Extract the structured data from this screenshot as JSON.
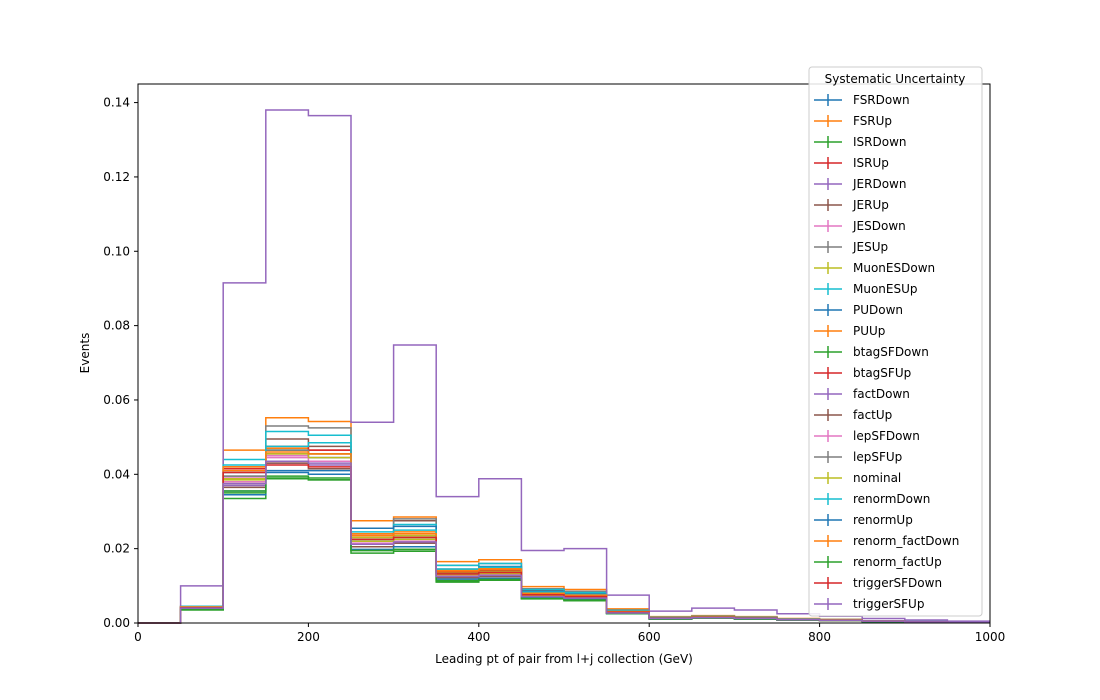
{
  "chart_data": {
    "type": "line",
    "step": true,
    "title": "",
    "xlabel": "Leading pt of pair from l+j collection (GeV)",
    "ylabel": "Events",
    "xlim": [
      0,
      1000
    ],
    "ylim": [
      0,
      0.145
    ],
    "grid": false,
    "x_ticks": [
      "0",
      "200",
      "400",
      "600",
      "800",
      "1000"
    ],
    "y_ticks": [
      "0.00",
      "0.02",
      "0.04",
      "0.06",
      "0.08",
      "0.10",
      "0.12",
      "0.14"
    ],
    "bin_edges": [
      0,
      50,
      100,
      150,
      200,
      250,
      300,
      350,
      400,
      450,
      500,
      550,
      600,
      650,
      700,
      750,
      800,
      850,
      900,
      950,
      1000
    ],
    "legend": {
      "title": "Systematic Uncertainty",
      "placement": "upper-right"
    },
    "series": [
      {
        "name": "FSRDown",
        "color": "#1f77b4",
        "values": [
          0,
          0.004,
          0.0355,
          0.041,
          0.041,
          0.0225,
          0.022,
          0.0125,
          0.013,
          0.007,
          0.0065,
          0.003,
          0.0012,
          0.0015,
          0.0012,
          0.0009,
          0.0007,
          0.0005,
          0.0003,
          0.0002
        ]
      },
      {
        "name": "FSRUp",
        "color": "#ff7f0e",
        "values": [
          0,
          0.0045,
          0.0465,
          0.0552,
          0.0542,
          0.0275,
          0.0285,
          0.0165,
          0.017,
          0.0098,
          0.009,
          0.0038,
          0.0017,
          0.002,
          0.0017,
          0.0012,
          0.001,
          0.0006,
          0.0004,
          0.0002
        ]
      },
      {
        "name": "ISRDown",
        "color": "#2ca02c",
        "values": [
          0,
          0.0035,
          0.0335,
          0.0388,
          0.0385,
          0.0188,
          0.0193,
          0.011,
          0.0115,
          0.0065,
          0.006,
          0.0025,
          0.001,
          0.0013,
          0.001,
          0.0008,
          0.0006,
          0.0004,
          0.0003,
          0.0002
        ]
      },
      {
        "name": "ISRUp",
        "color": "#d62728",
        "values": [
          0,
          0.0042,
          0.042,
          0.0455,
          0.0465,
          0.024,
          0.0235,
          0.0135,
          0.0138,
          0.0075,
          0.007,
          0.003,
          0.0013,
          0.0016,
          0.0013,
          0.001,
          0.0008,
          0.0005,
          0.0003,
          0.0002
        ]
      },
      {
        "name": "JERDown",
        "color": "#9467bd",
        "values": [
          0,
          0.0038,
          0.037,
          0.043,
          0.0425,
          0.0205,
          0.0215,
          0.0125,
          0.0125,
          0.007,
          0.0068,
          0.0028,
          0.0012,
          0.0015,
          0.0012,
          0.0009,
          0.0007,
          0.0005,
          0.0003,
          0.0002
        ]
      },
      {
        "name": "JERUp",
        "color": "#8c564b",
        "values": [
          0,
          0.004,
          0.0375,
          0.0495,
          0.0475,
          0.0235,
          0.0275,
          0.0145,
          0.015,
          0.0088,
          0.008,
          0.0032,
          0.0014,
          0.0017,
          0.0014,
          0.001,
          0.0008,
          0.0005,
          0.0003,
          0.0002
        ]
      },
      {
        "name": "JESDown",
        "color": "#e377c2",
        "values": [
          0,
          0.004,
          0.039,
          0.045,
          0.0445,
          0.022,
          0.022,
          0.0128,
          0.013,
          0.0072,
          0.0068,
          0.0028,
          0.0012,
          0.0015,
          0.0012,
          0.0009,
          0.0007,
          0.0005,
          0.0003,
          0.0002
        ]
      },
      {
        "name": "JESUp",
        "color": "#7f7f7f",
        "values": [
          0,
          0.0042,
          0.0395,
          0.053,
          0.0525,
          0.0255,
          0.028,
          0.0155,
          0.016,
          0.0092,
          0.0085,
          0.0035,
          0.0015,
          0.0018,
          0.0015,
          0.0011,
          0.0009,
          0.0006,
          0.0004,
          0.0002
        ]
      },
      {
        "name": "MuonESDown",
        "color": "#bcbd22",
        "values": [
          0,
          0.004,
          0.0385,
          0.0465,
          0.0455,
          0.023,
          0.0235,
          0.0135,
          0.014,
          0.0078,
          0.0072,
          0.003,
          0.0013,
          0.0016,
          0.0013,
          0.001,
          0.0008,
          0.0005,
          0.0003,
          0.0002
        ]
      },
      {
        "name": "MuonESUp",
        "color": "#17becf",
        "values": [
          0,
          0.0045,
          0.044,
          0.0515,
          0.0505,
          0.0255,
          0.0265,
          0.0155,
          0.016,
          0.009,
          0.0082,
          0.0034,
          0.0015,
          0.0018,
          0.0015,
          0.0011,
          0.0009,
          0.0006,
          0.0004,
          0.0002
        ]
      },
      {
        "name": "PUDown",
        "color": "#1f77b4",
        "values": [
          0,
          0.004,
          0.0405,
          0.0465,
          0.0445,
          0.0255,
          0.026,
          0.0145,
          0.0152,
          0.0085,
          0.0078,
          0.0032,
          0.0014,
          0.0017,
          0.0014,
          0.001,
          0.0008,
          0.0005,
          0.0003,
          0.0002
        ]
      },
      {
        "name": "PUUp",
        "color": "#ff7f0e",
        "values": [
          0,
          0.0043,
          0.041,
          0.047,
          0.0455,
          0.024,
          0.0245,
          0.0142,
          0.0148,
          0.0082,
          0.0076,
          0.0031,
          0.0014,
          0.0017,
          0.0014,
          0.001,
          0.0008,
          0.0005,
          0.0003,
          0.0002
        ]
      },
      {
        "name": "btagSFDown",
        "color": "#2ca02c",
        "values": [
          0,
          0.0037,
          0.0355,
          0.0395,
          0.039,
          0.0195,
          0.0198,
          0.0112,
          0.0118,
          0.0066,
          0.0062,
          0.0026,
          0.0011,
          0.0013,
          0.0011,
          0.0008,
          0.0006,
          0.0004,
          0.0003,
          0.0002
        ]
      },
      {
        "name": "btagSFUp",
        "color": "#d62728",
        "values": [
          0,
          0.0042,
          0.0415,
          0.0475,
          0.0465,
          0.0235,
          0.024,
          0.0138,
          0.0143,
          0.008,
          0.0074,
          0.003,
          0.0013,
          0.0016,
          0.0013,
          0.001,
          0.0008,
          0.0005,
          0.0003,
          0.0002
        ]
      },
      {
        "name": "factDown",
        "color": "#9467bd",
        "values": [
          0,
          0.01,
          0.0915,
          0.138,
          0.1365,
          0.054,
          0.0748,
          0.034,
          0.0388,
          0.0195,
          0.02,
          0.0075,
          0.0032,
          0.004,
          0.0035,
          0.0025,
          0.0018,
          0.0012,
          0.0008,
          0.0005
        ]
      },
      {
        "name": "factUp",
        "color": "#8c564b",
        "values": [
          0,
          0.004,
          0.0365,
          0.043,
          0.0415,
          0.0205,
          0.0215,
          0.0122,
          0.0125,
          0.007,
          0.0066,
          0.0027,
          0.0012,
          0.0014,
          0.0012,
          0.0009,
          0.0007,
          0.0005,
          0.0003,
          0.0002
        ]
      },
      {
        "name": "lepSFDown",
        "color": "#e377c2",
        "values": [
          0,
          0.004,
          0.038,
          0.0445,
          0.0435,
          0.0215,
          0.022,
          0.0127,
          0.013,
          0.0072,
          0.0068,
          0.0028,
          0.0012,
          0.0015,
          0.0012,
          0.0009,
          0.0007,
          0.0005,
          0.0003,
          0.0002
        ]
      },
      {
        "name": "lepSFUp",
        "color": "#7f7f7f",
        "values": [
          0,
          0.0041,
          0.0395,
          0.0465,
          0.0455,
          0.0225,
          0.023,
          0.0132,
          0.0136,
          0.0076,
          0.0071,
          0.0029,
          0.0013,
          0.0015,
          0.0013,
          0.0009,
          0.0007,
          0.0005,
          0.0003,
          0.0002
        ]
      },
      {
        "name": "nominal",
        "color": "#bcbd22",
        "values": [
          0,
          0.004,
          0.0388,
          0.0455,
          0.0445,
          0.022,
          0.0225,
          0.013,
          0.0133,
          0.0074,
          0.007,
          0.0028,
          0.0012,
          0.0015,
          0.0012,
          0.0009,
          0.0007,
          0.0005,
          0.0003,
          0.0002
        ]
      },
      {
        "name": "renormDown",
        "color": "#17becf",
        "values": [
          0,
          0.0043,
          0.0425,
          0.0475,
          0.0485,
          0.0245,
          0.025,
          0.0145,
          0.015,
          0.0083,
          0.0077,
          0.0032,
          0.0014,
          0.0017,
          0.0014,
          0.001,
          0.0008,
          0.0005,
          0.0003,
          0.0002
        ]
      },
      {
        "name": "renormUp",
        "color": "#1f77b4",
        "values": [
          0,
          0.0038,
          0.0345,
          0.0405,
          0.04,
          0.0198,
          0.0205,
          0.0118,
          0.012,
          0.0068,
          0.0064,
          0.0026,
          0.0011,
          0.0014,
          0.0011,
          0.0008,
          0.0007,
          0.0004,
          0.0003,
          0.0002
        ]
      },
      {
        "name": "renorm_factDown",
        "color": "#ff7f0e",
        "values": [
          0,
          0.0043,
          0.042,
          0.046,
          0.0455,
          0.0235,
          0.024,
          0.014,
          0.0145,
          0.008,
          0.0075,
          0.0031,
          0.0013,
          0.0016,
          0.0013,
          0.001,
          0.0008,
          0.0005,
          0.0003,
          0.0002
        ]
      },
      {
        "name": "renorm_factUp",
        "color": "#2ca02c",
        "values": [
          0,
          0.0036,
          0.035,
          0.039,
          0.0385,
          0.0195,
          0.0198,
          0.0114,
          0.0117,
          0.0066,
          0.0062,
          0.0026,
          0.0011,
          0.0013,
          0.0011,
          0.0008,
          0.0006,
          0.0004,
          0.0003,
          0.0002
        ]
      },
      {
        "name": "triggerSFDown",
        "color": "#d62728",
        "values": [
          0,
          0.0041,
          0.0405,
          0.0425,
          0.042,
          0.0225,
          0.023,
          0.0132,
          0.0136,
          0.0076,
          0.0071,
          0.0029,
          0.0013,
          0.0015,
          0.0013,
          0.0009,
          0.0007,
          0.0005,
          0.0003,
          0.0002
        ]
      },
      {
        "name": "triggerSFUp",
        "color": "#9467bd",
        "values": [
          0,
          0.004,
          0.0375,
          0.0435,
          0.043,
          0.0212,
          0.0218,
          0.0125,
          0.0128,
          0.0071,
          0.0067,
          0.0027,
          0.0012,
          0.0014,
          0.0012,
          0.0009,
          0.0007,
          0.0005,
          0.0003,
          0.0002
        ]
      }
    ]
  }
}
